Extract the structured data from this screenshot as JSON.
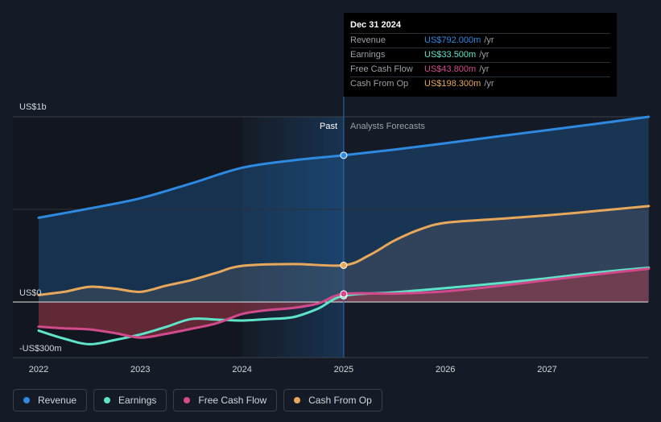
{
  "chart_data": {
    "type": "area",
    "y_axis": {
      "top_label": "US$1b",
      "zero_label": "US$0",
      "bottom_label": "-US$300m",
      "ylim": [
        -300,
        1000
      ]
    },
    "x_ticks": [
      "2022",
      "2023",
      "2024",
      "2025",
      "2026",
      "2027"
    ],
    "past_label": "Past",
    "forecast_label": "Analysts Forecasts",
    "divider_date": 2025.0,
    "series": [
      {
        "name": "Revenue",
        "color": "#2d8ae0",
        "points": [
          [
            2022.0,
            455
          ],
          [
            2022.5,
            505
          ],
          [
            2023.0,
            560
          ],
          [
            2023.5,
            640
          ],
          [
            2024.0,
            725
          ],
          [
            2024.5,
            765
          ],
          [
            2025.0,
            792
          ],
          [
            2025.5,
            823
          ],
          [
            2026.0,
            857
          ],
          [
            2026.5,
            893
          ],
          [
            2027.0,
            928
          ],
          [
            2027.5,
            963
          ],
          [
            2028.0,
            1000
          ]
        ]
      },
      {
        "name": "Earnings",
        "color": "#5fe3c9",
        "points": [
          [
            2022.0,
            -155
          ],
          [
            2022.25,
            -198
          ],
          [
            2022.5,
            -228
          ],
          [
            2022.75,
            -205
          ],
          [
            2023.0,
            -175
          ],
          [
            2023.25,
            -135
          ],
          [
            2023.5,
            -92
          ],
          [
            2023.75,
            -95
          ],
          [
            2024.0,
            -100
          ],
          [
            2024.25,
            -92
          ],
          [
            2024.5,
            -82
          ],
          [
            2024.75,
            -35
          ],
          [
            2025.0,
            33.5
          ],
          [
            2025.5,
            52
          ],
          [
            2026.0,
            75
          ],
          [
            2026.5,
            100
          ],
          [
            2027.0,
            128
          ],
          [
            2027.5,
            160
          ],
          [
            2028.0,
            185
          ]
        ]
      },
      {
        "name": "Free Cash Flow",
        "color": "#d14a8b",
        "points": [
          [
            2022.0,
            -133
          ],
          [
            2022.25,
            -142
          ],
          [
            2022.5,
            -148
          ],
          [
            2022.75,
            -168
          ],
          [
            2023.0,
            -192
          ],
          [
            2023.25,
            -172
          ],
          [
            2023.5,
            -145
          ],
          [
            2023.75,
            -115
          ],
          [
            2024.0,
            -65
          ],
          [
            2024.25,
            -44
          ],
          [
            2024.5,
            -32
          ],
          [
            2024.75,
            -8
          ],
          [
            2025.0,
            43.8
          ],
          [
            2025.5,
            45
          ],
          [
            2026.0,
            58
          ],
          [
            2026.5,
            85
          ],
          [
            2027.0,
            118
          ],
          [
            2027.5,
            150
          ],
          [
            2028.0,
            180
          ]
        ]
      },
      {
        "name": "Cash From Op",
        "color": "#e8a85b",
        "points": [
          [
            2022.0,
            38
          ],
          [
            2022.25,
            55
          ],
          [
            2022.5,
            82
          ],
          [
            2022.75,
            72
          ],
          [
            2023.0,
            55
          ],
          [
            2023.25,
            88
          ],
          [
            2023.5,
            118
          ],
          [
            2023.75,
            158
          ],
          [
            2024.0,
            195
          ],
          [
            2024.5,
            205
          ],
          [
            2025.0,
            198.3
          ],
          [
            2025.25,
            252
          ],
          [
            2025.5,
            332
          ],
          [
            2025.75,
            392
          ],
          [
            2026.0,
            428
          ],
          [
            2026.5,
            448
          ],
          [
            2027.0,
            468
          ],
          [
            2027.5,
            492
          ],
          [
            2028.0,
            518
          ]
        ]
      }
    ]
  },
  "tooltip": {
    "date": "Dec 31 2024",
    "rows": [
      {
        "label": "Revenue",
        "value": "US$792.000m",
        "unit": "/yr",
        "color": "#2d8ae0"
      },
      {
        "label": "Earnings",
        "value": "US$33.500m",
        "unit": "/yr",
        "color": "#5fe3c9"
      },
      {
        "label": "Free Cash Flow",
        "value": "US$43.800m",
        "unit": "/yr",
        "color": "#d14a8b"
      },
      {
        "label": "Cash From Op",
        "value": "US$198.300m",
        "unit": "/yr",
        "color": "#e8a85b"
      }
    ]
  },
  "legend": [
    {
      "label": "Revenue",
      "color": "#2d8ae0"
    },
    {
      "label": "Earnings",
      "color": "#5fe3c9"
    },
    {
      "label": "Free Cash Flow",
      "color": "#d14a8b"
    },
    {
      "label": "Cash From Op",
      "color": "#e8a85b"
    }
  ]
}
